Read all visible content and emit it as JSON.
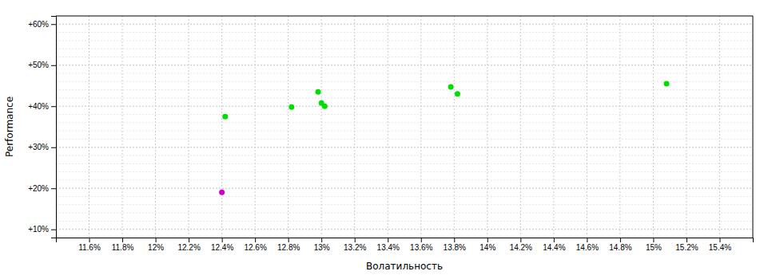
{
  "chart_data": {
    "type": "scatter",
    "x_label": "Волатильность",
    "y_label": "Performance",
    "xlim": [
      0.114,
      0.156
    ],
    "ylim": [
      0.08,
      0.62
    ],
    "xticks": [
      {
        "value": 0.116,
        "label": "11.6%"
      },
      {
        "value": 0.118,
        "label": "11.8%"
      },
      {
        "value": 0.12,
        "label": "12%"
      },
      {
        "value": 0.122,
        "label": "12.2%"
      },
      {
        "value": 0.124,
        "label": "12.4%"
      },
      {
        "value": 0.126,
        "label": "12.6%"
      },
      {
        "value": 0.128,
        "label": "12.8%"
      },
      {
        "value": 0.13,
        "label": "13%"
      },
      {
        "value": 0.132,
        "label": "13.2%"
      },
      {
        "value": 0.134,
        "label": "13.4%"
      },
      {
        "value": 0.136,
        "label": "13.6%"
      },
      {
        "value": 0.138,
        "label": "13.8%"
      },
      {
        "value": 0.14,
        "label": "14%"
      },
      {
        "value": 0.142,
        "label": "14.2%"
      },
      {
        "value": 0.144,
        "label": "14.4%"
      },
      {
        "value": 0.146,
        "label": "14.6%"
      },
      {
        "value": 0.148,
        "label": "14.8%"
      },
      {
        "value": 0.15,
        "label": "15%"
      },
      {
        "value": 0.152,
        "label": "15.2%"
      },
      {
        "value": 0.154,
        "label": "15.4%"
      }
    ],
    "yticks": [
      {
        "value": 0.1,
        "label": "+10%"
      },
      {
        "value": 0.2,
        "label": "+20%"
      },
      {
        "value": 0.3,
        "label": "+30%"
      },
      {
        "value": 0.4,
        "label": "+40%"
      },
      {
        "value": 0.5,
        "label": "+50%"
      },
      {
        "value": 0.6,
        "label": "+60%"
      }
    ],
    "minor_yticks": [
      0.1,
      0.12,
      0.14,
      0.16,
      0.18,
      0.2,
      0.22,
      0.24,
      0.26,
      0.28,
      0.3,
      0.32,
      0.34,
      0.36,
      0.38,
      0.4,
      0.42,
      0.44,
      0.46,
      0.48,
      0.5,
      0.52,
      0.54,
      0.56,
      0.58,
      0.6
    ],
    "grid": true,
    "series": [
      {
        "color": "#00dd00",
        "x": [
          0.1242,
          0.1282,
          0.1298,
          0.13,
          0.1302,
          0.1378,
          0.1382,
          0.1508
        ],
        "values": [
          0.375,
          0.398,
          0.435,
          0.408,
          0.4,
          0.447,
          0.43,
          0.455
        ]
      },
      {
        "color": "#cc00cc",
        "x": [
          0.124
        ],
        "values": [
          0.19
        ]
      }
    ]
  }
}
